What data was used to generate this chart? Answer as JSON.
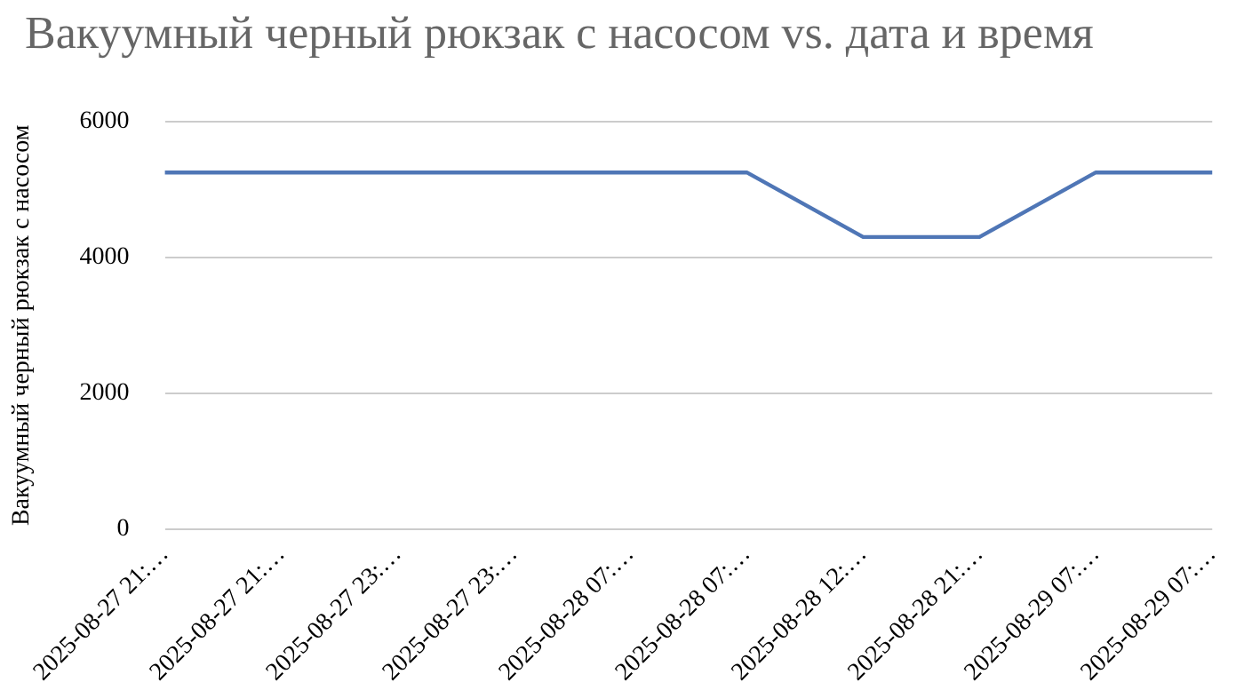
{
  "chart_data": {
    "type": "line",
    "title": "Вакуумный черный рюкзак с насосом vs. дата и время",
    "ylabel": "Вакуумный черный рюкзак с насосом",
    "categories": [
      "2025-08-27 21:…",
      "2025-08-27 21:…",
      "2025-08-27 23:…",
      "2025-08-27 23:…",
      "2025-08-28 07:…",
      "2025-08-28 07:…",
      "2025-08-28 12:…",
      "2025-08-28 21:…",
      "2025-08-29 07:…",
      "2025-08-29 07:…"
    ],
    "series": [
      {
        "color": "#4f76b6",
        "values": [
          5250,
          5250,
          5250,
          5250,
          5250,
          5250,
          4300,
          4300,
          5250,
          5250
        ]
      }
    ],
    "ylim": [
      0,
      6000
    ],
    "yticks": [
      0,
      2000,
      4000,
      6000
    ],
    "grid": "y",
    "legend": false,
    "marker": "none",
    "line_style": "solid"
  }
}
